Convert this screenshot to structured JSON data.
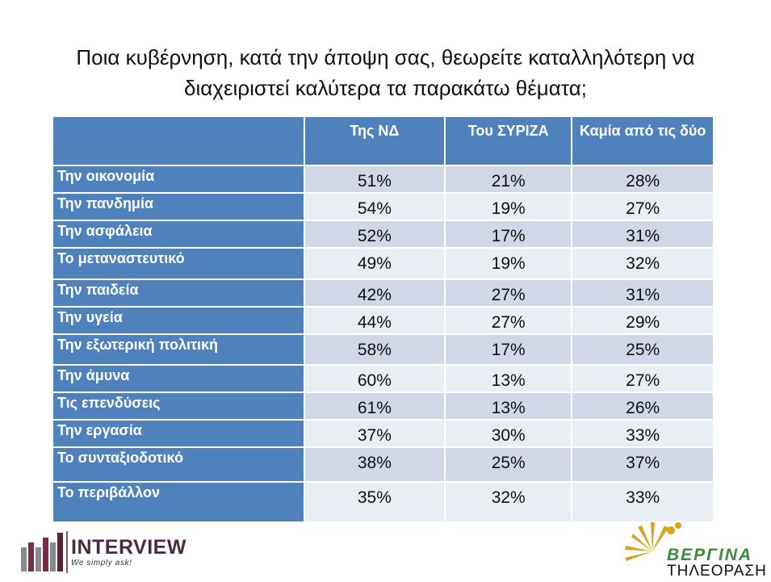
{
  "title_line1": "Ποια κυβέρνηση, κατά την άποψη σας, θεωρείτε καταλληλότερη να",
  "title_line2": "διαχειριστεί καλύτερα τα παρακάτω θέματα;",
  "columns": [
    "Της ΝΔ",
    "Του ΣΥΡΙΖΑ",
    "Καμία από τις δύο"
  ],
  "rows": [
    {
      "label": "Την οικονομία",
      "values": [
        "51%",
        "21%",
        "28%"
      ]
    },
    {
      "label": "Την πανδημία",
      "values": [
        "54%",
        "19%",
        "27%"
      ]
    },
    {
      "label": "Την ασφάλεια",
      "values": [
        "52%",
        "17%",
        "31%"
      ]
    },
    {
      "label": "Το μεταναστευτικό",
      "values": [
        "49%",
        "19%",
        "32%"
      ]
    },
    {
      "label": "Την παιδεία",
      "values": [
        "42%",
        "27%",
        "31%"
      ]
    },
    {
      "label": "Την υγεία",
      "values": [
        "44%",
        "27%",
        "29%"
      ]
    },
    {
      "label": "Την εξωτερική πολιτική",
      "values": [
        "58%",
        "17%",
        "25%"
      ]
    },
    {
      "label": "Την άμυνα",
      "values": [
        "60%",
        "13%",
        "27%"
      ]
    },
    {
      "label": "Τις επενδύσεις",
      "values": [
        "61%",
        "13%",
        "26%"
      ]
    },
    {
      "label": "Την εργασία",
      "values": [
        "37%",
        "30%",
        "33%"
      ]
    },
    {
      "label": "Το συνταξιοδοτικό",
      "values": [
        "38%",
        "25%",
        "37%"
      ]
    },
    {
      "label": "Το περιβάλλον",
      "values": [
        "35%",
        "32%",
        "33%"
      ]
    }
  ],
  "chart_data": {
    "type": "table",
    "title": "Ποια κυβέρνηση, κατά την άποψη σας, θεωρείτε καταλληλότερη να διαχειριστεί καλύτερα τα παρακάτω θέματα;",
    "columns": [
      "Της ΝΔ",
      "Του ΣΥΡΙΖΑ",
      "Καμία από τις δύο"
    ],
    "categories": [
      "Την οικονομία",
      "Την πανδημία",
      "Την ασφάλεια",
      "Το μεταναστευτικό",
      "Την παιδεία",
      "Την υγεία",
      "Την εξωτερική πολιτική",
      "Την άμυνα",
      "Τις επενδύσεις",
      "Την εργασία",
      "Το συνταξιοδοτικό",
      "Το περιβάλλον"
    ],
    "series": [
      {
        "name": "Της ΝΔ",
        "values": [
          51,
          54,
          52,
          49,
          42,
          44,
          58,
          60,
          61,
          37,
          38,
          35
        ]
      },
      {
        "name": "Του ΣΥΡΙΖΑ",
        "values": [
          21,
          19,
          17,
          19,
          27,
          27,
          17,
          13,
          13,
          30,
          25,
          32
        ]
      },
      {
        "name": "Καμία από τις δύο",
        "values": [
          28,
          27,
          31,
          32,
          31,
          29,
          25,
          27,
          26,
          33,
          37,
          33
        ]
      }
    ]
  },
  "logos": {
    "left_name": "INTERVIEW",
    "left_tagline": "We simply ask!",
    "right_name": "ΒΕΡΓΙΝΑ",
    "right_sub": "ΤΗΛΕΟΡΑΣΗ"
  },
  "colors": {
    "header": "#4f81bd",
    "row_odd": "#d0d8e8",
    "row_even": "#e9edf4"
  }
}
